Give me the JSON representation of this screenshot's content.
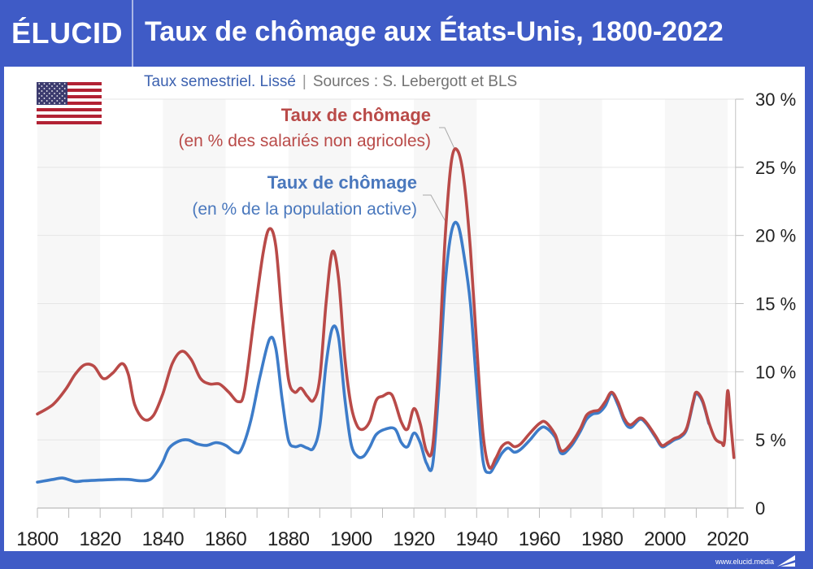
{
  "header": {
    "logo": "ÉLUCID",
    "title": "Taux de chômage aux États-Unis, 1800-2022"
  },
  "subtitle": {
    "left": "Taux semestriel. Lissé",
    "separator": "|",
    "right": "Sources : S. Lebergott et BLS"
  },
  "flag": {
    "icon": "us-flag-icon",
    "country": "États-Unis"
  },
  "footer": {
    "url": "www.elucid.media"
  },
  "colors": {
    "brand": "#3f5bc6",
    "red_series": "#b94a48",
    "blue_series": "#3d7cc9",
    "grid": "#e6e6e6",
    "band": "#f7f7f7"
  },
  "annotations": {
    "red_title": "Taux de chômage",
    "red_sub": "(en % des salariés non agricoles)",
    "blue_title": "Taux de chômage",
    "blue_sub": "(en % de la population active)"
  },
  "chart_data": {
    "type": "line",
    "title": "Taux de chômage aux États-Unis, 1800-2022",
    "subtitle": "Taux semestriel. Lissé | Sources : S. Lebergott et BLS",
    "xlabel": "",
    "ylabel": "",
    "xlim": [
      1800,
      2022
    ],
    "ylim": [
      0,
      30
    ],
    "x_ticks": [
      1800,
      1820,
      1840,
      1860,
      1880,
      1900,
      1920,
      1940,
      1960,
      1980,
      2000,
      2020
    ],
    "y_ticks": [
      {
        "value": 0,
        "label": "0"
      },
      {
        "value": 5,
        "label": "5 %"
      },
      {
        "value": 10,
        "label": "10 %"
      },
      {
        "value": 15,
        "label": "15 %"
      },
      {
        "value": 20,
        "label": "20 %"
      },
      {
        "value": 25,
        "label": "25 %"
      },
      {
        "value": 30,
        "label": "30 %"
      }
    ],
    "y_axis_side": "right",
    "grid": true,
    "shaded_bands": [
      [
        1800,
        1820
      ],
      [
        1840,
        1860
      ],
      [
        1880,
        1900
      ],
      [
        1920,
        1940
      ],
      [
        1960,
        1980
      ],
      [
        2000,
        2020
      ]
    ],
    "series": [
      {
        "name": "Taux de chômage (en % des salariés non agricoles)",
        "color": "#b94a48",
        "points": [
          [
            1800,
            6.9
          ],
          [
            1805,
            7.6
          ],
          [
            1809,
            8.7
          ],
          [
            1812,
            9.8
          ],
          [
            1815,
            10.5
          ],
          [
            1818,
            10.4
          ],
          [
            1821,
            9.5
          ],
          [
            1824,
            9.9
          ],
          [
            1827,
            10.6
          ],
          [
            1829,
            9.8
          ],
          [
            1831,
            7.6
          ],
          [
            1834,
            6.5
          ],
          [
            1837,
            6.8
          ],
          [
            1840,
            8.4
          ],
          [
            1843,
            10.6
          ],
          [
            1846,
            11.5
          ],
          [
            1849,
            10.9
          ],
          [
            1852,
            9.5
          ],
          [
            1855,
            9.1
          ],
          [
            1858,
            9.1
          ],
          [
            1861,
            8.5
          ],
          [
            1864,
            7.8
          ],
          [
            1866,
            8.6
          ],
          [
            1869,
            13.8
          ],
          [
            1872,
            18.8
          ],
          [
            1874,
            20.5
          ],
          [
            1876,
            19.2
          ],
          [
            1878,
            14.0
          ],
          [
            1880,
            9.5
          ],
          [
            1882,
            8.5
          ],
          [
            1884,
            8.8
          ],
          [
            1886,
            8.2
          ],
          [
            1888,
            7.9
          ],
          [
            1890,
            9.5
          ],
          [
            1892,
            15.0
          ],
          [
            1894,
            18.8
          ],
          [
            1896,
            16.8
          ],
          [
            1898,
            11.0
          ],
          [
            1900,
            7.5
          ],
          [
            1902,
            6.0
          ],
          [
            1904,
            5.8
          ],
          [
            1906,
            6.4
          ],
          [
            1908,
            7.9
          ],
          [
            1910,
            8.2
          ],
          [
            1913,
            8.3
          ],
          [
            1916,
            6.3
          ],
          [
            1918,
            5.8
          ],
          [
            1920,
            7.3
          ],
          [
            1922,
            6.2
          ],
          [
            1924,
            4.2
          ],
          [
            1926,
            4.5
          ],
          [
            1928,
            11.0
          ],
          [
            1930,
            20.0
          ],
          [
            1932,
            25.5
          ],
          [
            1934,
            26.2
          ],
          [
            1936,
            24.0
          ],
          [
            1938,
            19.0
          ],
          [
            1940,
            12.0
          ],
          [
            1942,
            5.5
          ],
          [
            1944,
            3.0
          ],
          [
            1946,
            3.6
          ],
          [
            1948,
            4.5
          ],
          [
            1950,
            4.8
          ],
          [
            1952,
            4.5
          ],
          [
            1954,
            4.7
          ],
          [
            1957,
            5.5
          ],
          [
            1960,
            6.2
          ],
          [
            1962,
            6.3
          ],
          [
            1965,
            5.4
          ],
          [
            1967,
            4.2
          ],
          [
            1970,
            4.7
          ],
          [
            1973,
            5.8
          ],
          [
            1975,
            6.8
          ],
          [
            1977,
            7.1
          ],
          [
            1979,
            7.2
          ],
          [
            1981,
            7.8
          ],
          [
            1983,
            8.5
          ],
          [
            1985,
            7.8
          ],
          [
            1987,
            6.6
          ],
          [
            1989,
            6.1
          ],
          [
            1992,
            6.6
          ],
          [
            1994,
            6.3
          ],
          [
            1997,
            5.3
          ],
          [
            1999,
            4.6
          ],
          [
            2001,
            4.8
          ],
          [
            2003,
            5.1
          ],
          [
            2005,
            5.3
          ],
          [
            2007,
            5.9
          ],
          [
            2009,
            7.8
          ],
          [
            2010,
            8.5
          ],
          [
            2012,
            7.9
          ],
          [
            2014,
            6.3
          ],
          [
            2016,
            5.1
          ],
          [
            2018,
            4.8
          ],
          [
            2019,
            4.9
          ],
          [
            2020,
            8.6
          ],
          [
            2021,
            6.2
          ],
          [
            2022,
            3.7
          ]
        ]
      },
      {
        "name": "Taux de chômage (en % de la population active)",
        "color": "#3d7cc9",
        "points": [
          [
            1800,
            1.9
          ],
          [
            1805,
            2.1
          ],
          [
            1808,
            2.2
          ],
          [
            1812,
            1.95
          ],
          [
            1815,
            2.0
          ],
          [
            1820,
            2.05
          ],
          [
            1825,
            2.1
          ],
          [
            1829,
            2.1
          ],
          [
            1833,
            2.0
          ],
          [
            1836,
            2.1
          ],
          [
            1838,
            2.6
          ],
          [
            1840,
            3.4
          ],
          [
            1842,
            4.4
          ],
          [
            1845,
            4.9
          ],
          [
            1848,
            5.0
          ],
          [
            1851,
            4.7
          ],
          [
            1854,
            4.6
          ],
          [
            1857,
            4.8
          ],
          [
            1860,
            4.6
          ],
          [
            1863,
            4.1
          ],
          [
            1865,
            4.3
          ],
          [
            1868,
            6.4
          ],
          [
            1871,
            9.7
          ],
          [
            1874,
            12.4
          ],
          [
            1876,
            11.7
          ],
          [
            1878,
            8.0
          ],
          [
            1880,
            5.0
          ],
          [
            1882,
            4.5
          ],
          [
            1884,
            4.6
          ],
          [
            1886,
            4.4
          ],
          [
            1888,
            4.4
          ],
          [
            1890,
            6.0
          ],
          [
            1892,
            10.5
          ],
          [
            1894,
            13.2
          ],
          [
            1896,
            12.5
          ],
          [
            1898,
            8.0
          ],
          [
            1900,
            4.7
          ],
          [
            1902,
            3.8
          ],
          [
            1904,
            3.8
          ],
          [
            1906,
            4.5
          ],
          [
            1908,
            5.4
          ],
          [
            1911,
            5.8
          ],
          [
            1914,
            5.8
          ],
          [
            1916,
            4.8
          ],
          [
            1918,
            4.5
          ],
          [
            1920,
            5.5
          ],
          [
            1922,
            4.8
          ],
          [
            1924,
            3.3
          ],
          [
            1926,
            3.2
          ],
          [
            1928,
            9.0
          ],
          [
            1930,
            16.5
          ],
          [
            1932,
            20.3
          ],
          [
            1934,
            20.8
          ],
          [
            1936,
            18.5
          ],
          [
            1938,
            15.0
          ],
          [
            1940,
            9.0
          ],
          [
            1942,
            3.5
          ],
          [
            1944,
            2.6
          ],
          [
            1946,
            3.2
          ],
          [
            1948,
            4.0
          ],
          [
            1950,
            4.4
          ],
          [
            1952,
            4.1
          ],
          [
            1954,
            4.3
          ],
          [
            1957,
            5.0
          ],
          [
            1960,
            5.8
          ],
          [
            1962,
            5.9
          ],
          [
            1965,
            5.2
          ],
          [
            1967,
            4.0
          ],
          [
            1970,
            4.5
          ],
          [
            1973,
            5.6
          ],
          [
            1975,
            6.5
          ],
          [
            1977,
            6.9
          ],
          [
            1979,
            7.0
          ],
          [
            1981,
            7.5
          ],
          [
            1983,
            8.4
          ],
          [
            1985,
            7.6
          ],
          [
            1987,
            6.4
          ],
          [
            1989,
            5.9
          ],
          [
            1992,
            6.5
          ],
          [
            1994,
            6.2
          ],
          [
            1997,
            5.2
          ],
          [
            1999,
            4.5
          ],
          [
            2001,
            4.7
          ],
          [
            2003,
            5.0
          ],
          [
            2005,
            5.2
          ],
          [
            2007,
            5.8
          ],
          [
            2009,
            7.7
          ],
          [
            2010,
            8.4
          ],
          [
            2012,
            7.8
          ],
          [
            2014,
            6.2
          ]
        ]
      }
    ],
    "legend": "inline-annotations top-center"
  }
}
